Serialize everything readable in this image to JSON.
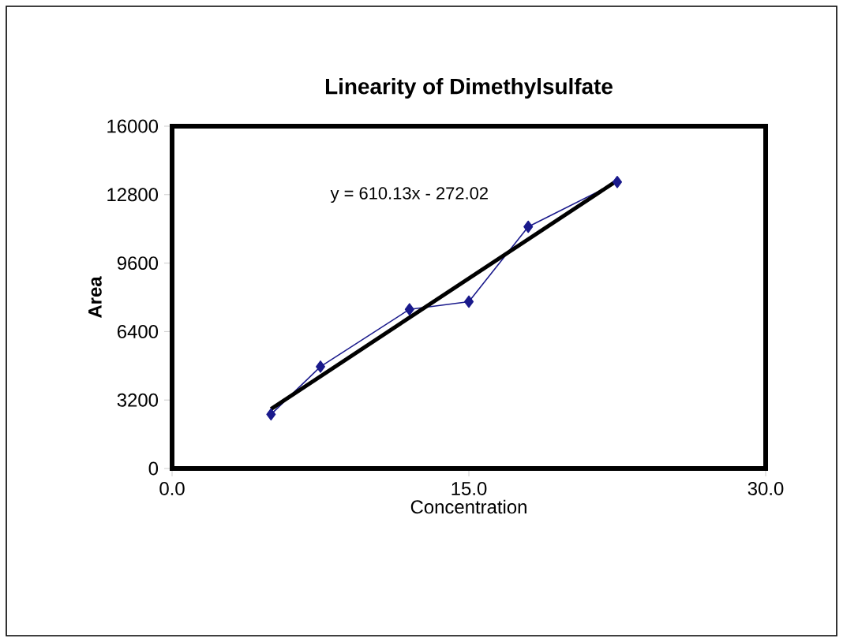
{
  "chart_data": {
    "type": "line",
    "title": "Linearity of Dimethylsulfate",
    "xlabel": "Concentration",
    "ylabel": "Area",
    "xlim": [
      0,
      30
    ],
    "xticks": [
      {
        "value": 0,
        "label": "0.0"
      },
      {
        "value": 15,
        "label": "15.0"
      },
      {
        "value": 30,
        "label": "30.0"
      }
    ],
    "ylim": [
      0,
      16000
    ],
    "yticks": [
      0,
      3200,
      6400,
      9600,
      12800,
      16000
    ],
    "grid": false,
    "annotations": [
      "y = 610.13x - 272.02"
    ],
    "series": [
      {
        "color": "#1a1a8c",
        "marker": "diamond",
        "x": [
          5,
          7.5,
          12,
          15,
          18,
          22.5
        ],
        "values": [
          2530,
          4760,
          7440,
          7800,
          11300,
          13390
        ]
      },
      {
        "color": "#000000",
        "marker": "none",
        "x": [
          5,
          22.5
        ],
        "values": [
          2780,
          13460
        ]
      }
    ]
  }
}
